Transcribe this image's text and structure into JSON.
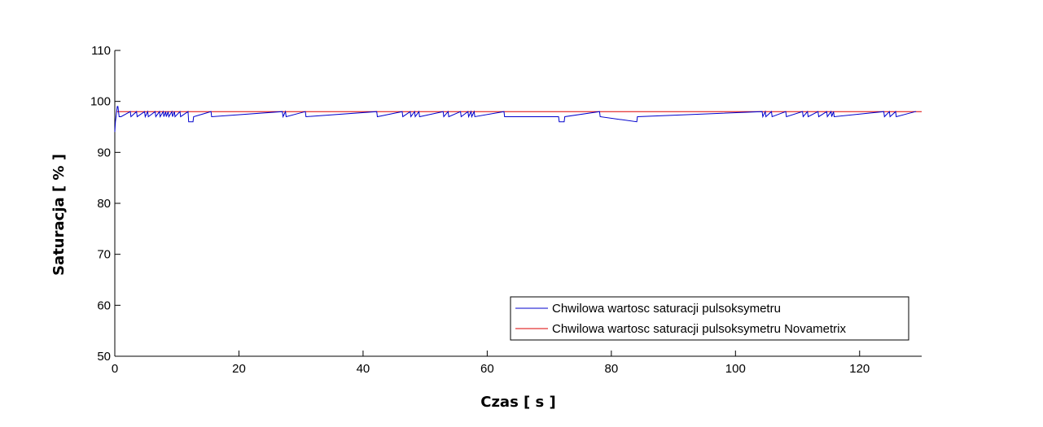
{
  "chart_data": {
    "type": "line",
    "xlabel": "Czas [ s ]",
    "ylabel": "Saturacja [ % ]",
    "xlim": [
      0,
      130
    ],
    "ylim": [
      50,
      110
    ],
    "xticks": [
      0,
      20,
      40,
      60,
      80,
      100,
      120
    ],
    "yticks": [
      50,
      60,
      70,
      80,
      90,
      100,
      110
    ],
    "grid": false,
    "legend_position": "bottom-right",
    "series": [
      {
        "name": "Chwilowa wartosc saturacji pulsoksymetru",
        "color": "#0000cc",
        "x": [
          0,
          0.1,
          0.3,
          0.4,
          0.5,
          0.7,
          0.8,
          1.0,
          2.5,
          2.6,
          3.5,
          3.6,
          4.8,
          4.9,
          5.3,
          5.4,
          6.5,
          6.6,
          7.2,
          7.3,
          7.8,
          7.9,
          8.2,
          8.3,
          8.6,
          8.7,
          9.2,
          9.3,
          9.6,
          9.7,
          10.5,
          10.6,
          11.8,
          11.9,
          12.6,
          12.7,
          15.5,
          15.6,
          27.0,
          27.1,
          27.5,
          27.6,
          30.7,
          30.8,
          42.2,
          42.3,
          46.3,
          46.4,
          47.6,
          47.7,
          48.3,
          48.4,
          49.0,
          49.1,
          52.9,
          53.0,
          53.7,
          53.8,
          55.7,
          55.8,
          56.9,
          57.0,
          57.4,
          57.5,
          57.9,
          58.0,
          62.7,
          62.8,
          71.5,
          71.6,
          72.4,
          72.5,
          78.1,
          78.2,
          84.1,
          84.2,
          104.3,
          104.4,
          104.8,
          104.9,
          105.8,
          105.9,
          108.1,
          108.2,
          110.8,
          110.9,
          111.6,
          111.7,
          113.3,
          113.4,
          114.7,
          114.8,
          115.4,
          115.5,
          115.8,
          115.9,
          123.9,
          124.0,
          124.8,
          124.9,
          125.8,
          125.9,
          129.0,
          129.1
        ],
        "y": [
          94,
          96,
          98,
          99,
          99,
          97,
          97,
          97,
          98,
          97,
          98,
          97,
          98,
          97,
          98,
          97,
          98,
          97,
          98,
          97,
          98,
          97,
          98,
          97,
          98,
          97,
          98,
          97,
          98,
          97,
          98,
          97,
          98,
          96,
          96,
          97,
          98,
          97,
          98,
          97,
          98,
          97,
          98,
          97,
          98,
          97,
          98,
          97,
          98,
          97,
          98,
          97,
          98,
          97,
          98,
          97,
          98,
          97,
          98,
          97,
          98,
          97,
          98,
          97,
          98,
          97,
          98,
          97,
          97,
          96,
          96,
          97,
          98,
          97,
          96,
          97,
          98,
          97,
          98,
          97,
          98,
          97,
          98,
          97,
          98,
          97,
          98,
          97,
          98,
          97,
          98,
          97,
          98,
          97,
          98,
          97,
          98,
          97,
          98,
          97,
          98,
          97,
          98,
          98
        ]
      },
      {
        "name": "Chwilowa wartosc saturacji pulsoksymetru Novametrix",
        "color": "#dd0000",
        "x": [
          0.3,
          130
        ],
        "y": [
          98,
          98
        ]
      }
    ]
  }
}
